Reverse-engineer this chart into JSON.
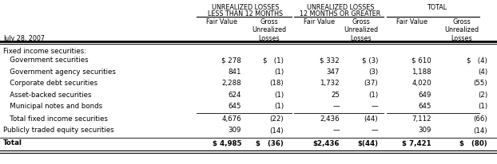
{
  "date_label": "July 28, 2007",
  "grp1_title1": "UNREALIZED LOSSES",
  "grp1_title2": "LESS THAN 12 MONTHS",
  "grp2_title1": "UNREALIZED LOSSES",
  "grp2_title2": "12 MONTHS OR GREATER",
  "grp3_title1": "TOTAL",
  "col_fv": "Fair Value",
  "col_gl": "Gross\nUnrealized\nLosses",
  "section_header": "Fixed income securities:",
  "rows": [
    [
      "   Government securities",
      "$ 278",
      "$   (1)",
      "$ 332",
      "$ (3)",
      "$ 610",
      "$   (4)"
    ],
    [
      "   Government agency securities",
      "841",
      "(1)",
      "347",
      "(3)",
      "1,188",
      "(4)"
    ],
    [
      "   Corporate debt securities",
      "2,288",
      "(18)",
      "1,732",
      "(37)",
      "4,020",
      "(55)"
    ],
    [
      "   Asset-backed securities",
      "624",
      "(1)",
      "25",
      "(1)",
      "649",
      "(2)"
    ],
    [
      "   Municipal notes and bonds",
      "645",
      "(1)",
      "—",
      "—",
      "645",
      "(1)"
    ]
  ],
  "subtotal_row": [
    "   Total fixed income securities",
    "4,676",
    "(22)",
    "2,436",
    "(44)",
    "7,112",
    "(66)"
  ],
  "equity_row": [
    "Publicly traded equity securities",
    "309",
    "(14)",
    "—",
    "—",
    "309",
    "(14)"
  ],
  "total_row": [
    "Total",
    "$ 4,985",
    "$   (36)",
    "$2,436",
    "$(44)",
    "$ 7,421",
    "$   (80)"
  ],
  "bg_color": "#ffffff",
  "fs_title": 5.8,
  "fs_subhdr": 5.8,
  "fs_data": 6.2
}
